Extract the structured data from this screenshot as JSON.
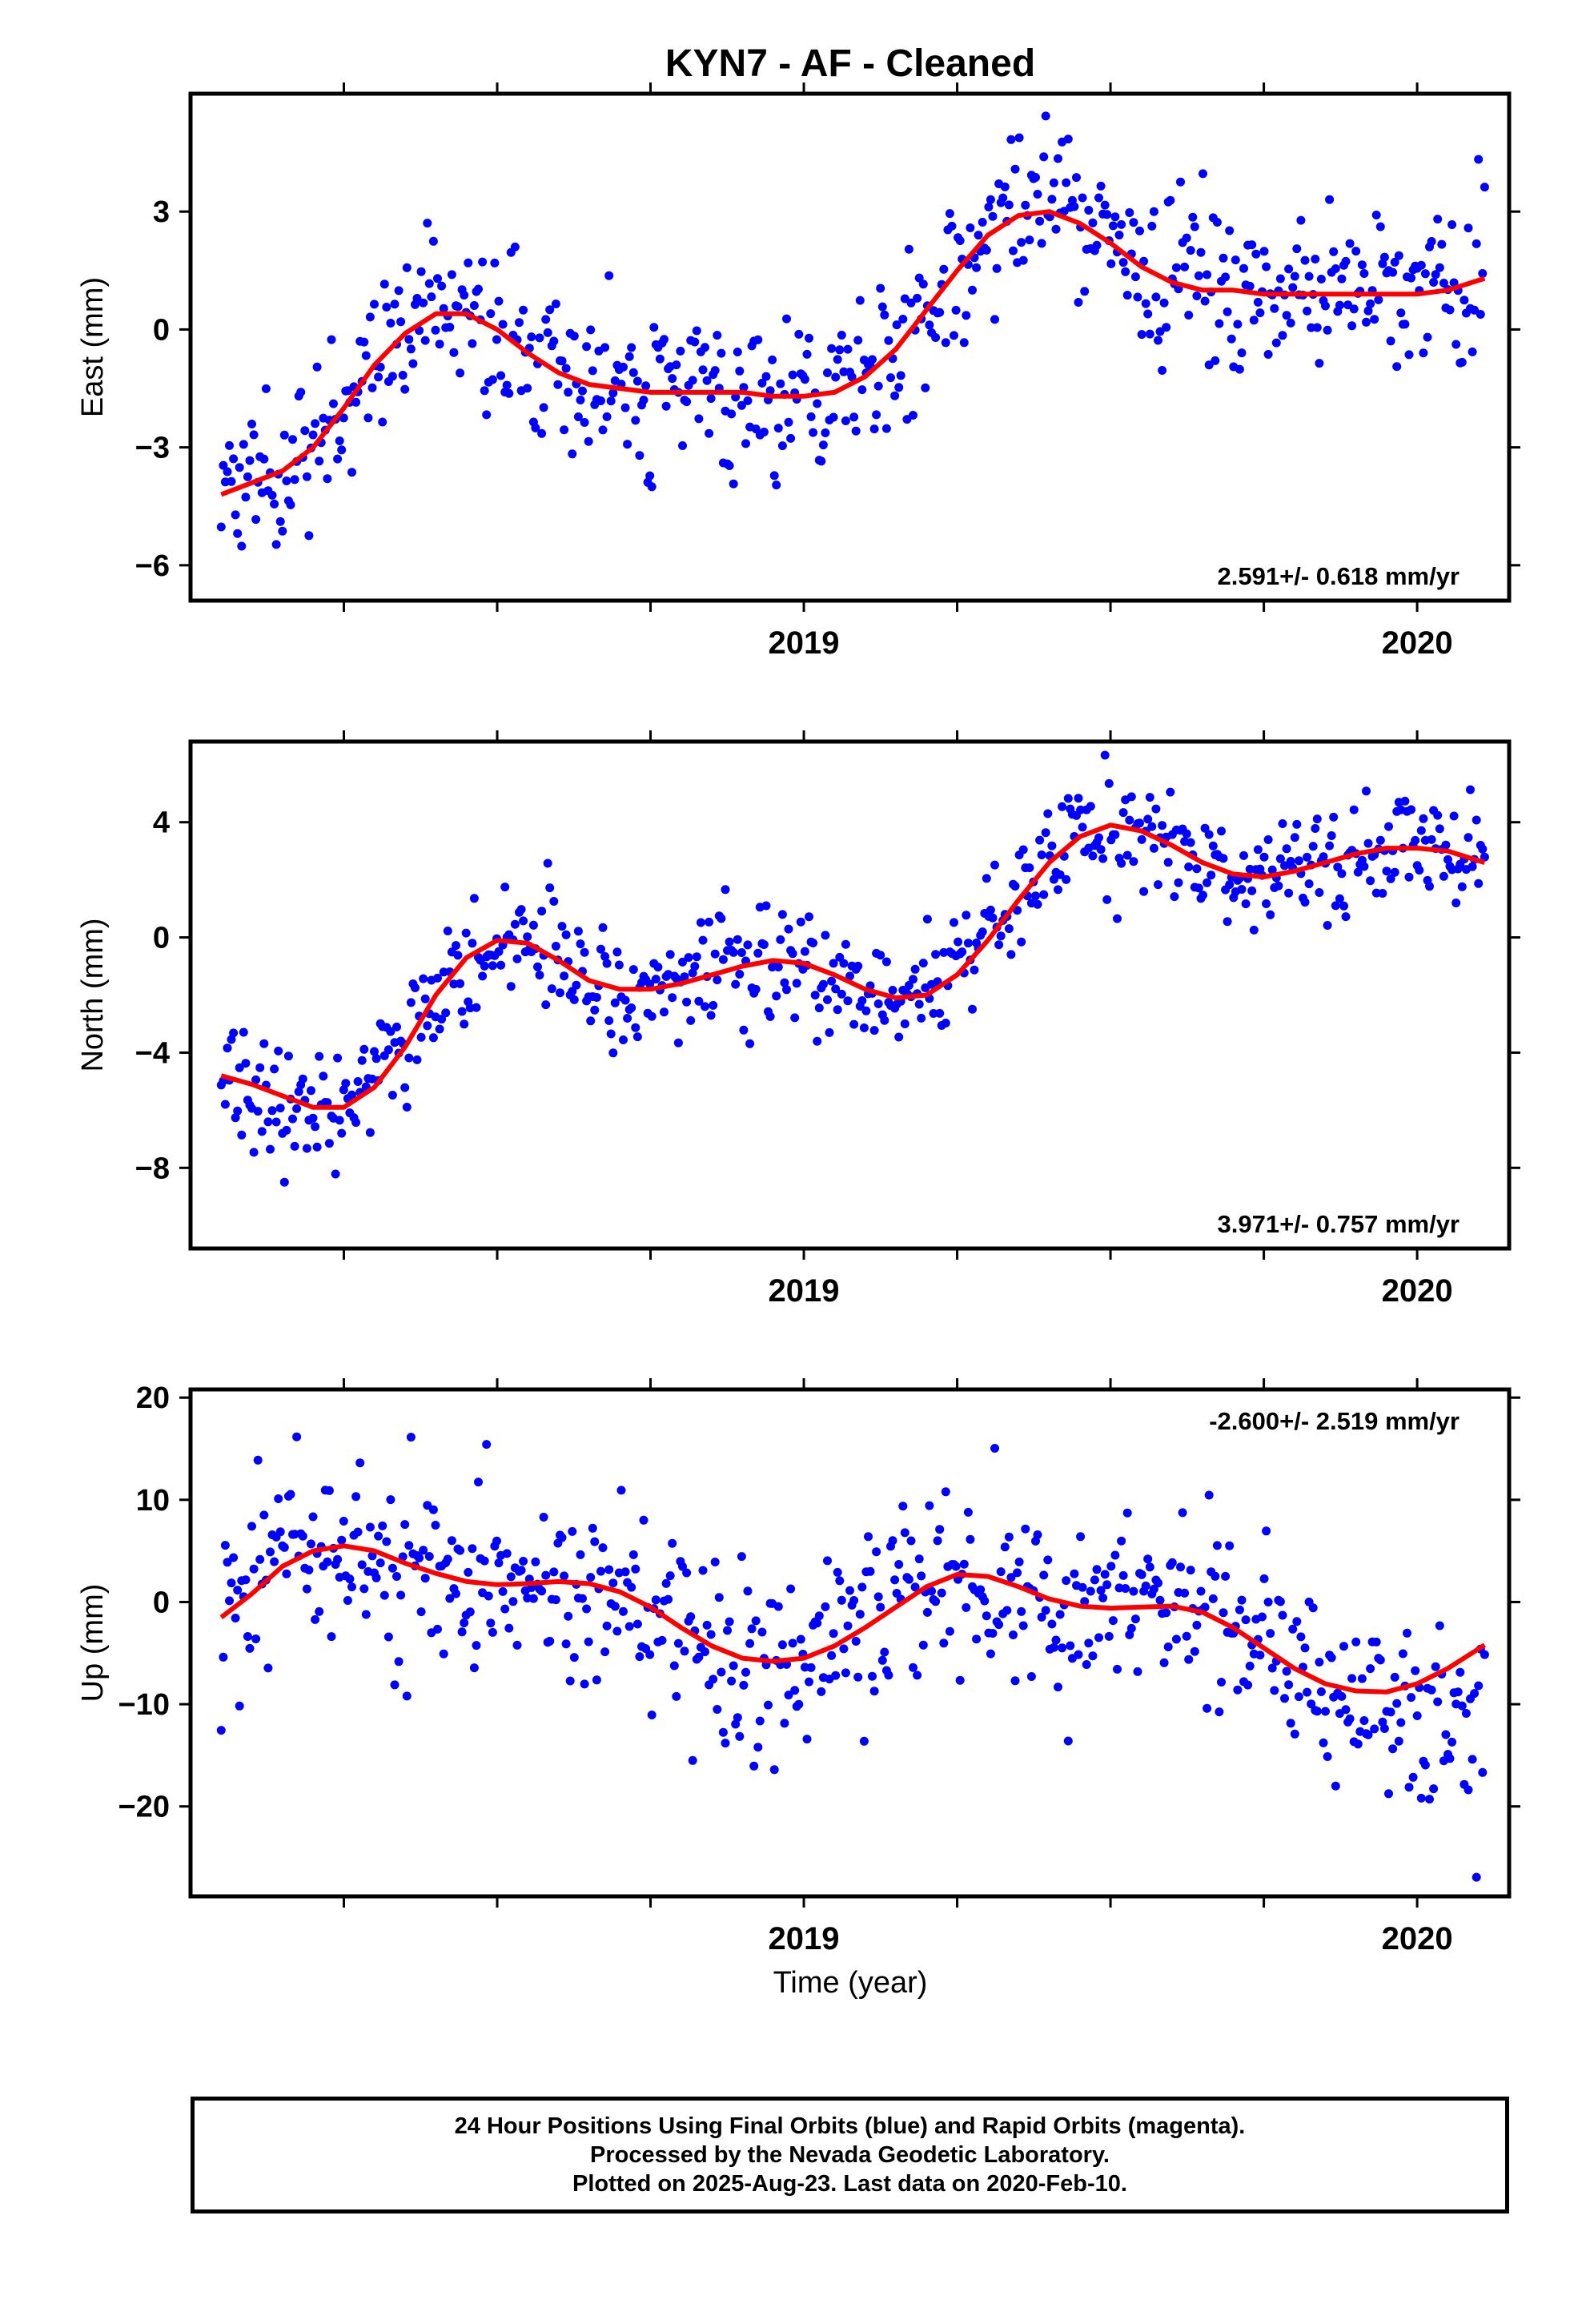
{
  "title": "KYN7  - AF - Cleaned",
  "xlabel": "Time (year)",
  "footer": {
    "line1": "24 Hour Positions Using Final Orbits (blue) and Rapid Orbits (magenta).",
    "line2": "Processed by the Nevada Geodetic Laboratory.",
    "line3": "Plotted on 2025-Aug-23. Last data on 2020-Feb-10."
  },
  "chart_data": [
    {
      "type": "scatter",
      "ylabel": "East (mm)",
      "rate_label": "2.591+/- 0.618 mm/yr",
      "rate_position": "bottom-right",
      "xlim": [
        2018.0,
        2020.15
      ],
      "ylim": [
        -6.9,
        6.0
      ],
      "xticks": [
        2019,
        2020
      ],
      "yticks": [
        -6,
        -3,
        0,
        3
      ],
      "point_color": "#0000ff",
      "fit_color": "#ff0000",
      "fit": {
        "x": [
          2018.05,
          2018.1,
          2018.15,
          2018.2,
          2018.25,
          2018.3,
          2018.35,
          2018.4,
          2018.45,
          2018.5,
          2018.55,
          2018.6,
          2018.65,
          2018.7,
          2018.75,
          2018.8,
          2018.85,
          2018.9,
          2018.95,
          2019.0,
          2019.05,
          2019.1,
          2019.15,
          2019.2,
          2019.25,
          2019.3,
          2019.35,
          2019.4,
          2019.45,
          2019.5,
          2019.55,
          2019.6,
          2019.65,
          2019.7,
          2019.75,
          2019.8,
          2019.85,
          2019.9,
          2019.95,
          2020.0,
          2020.05,
          2020.11
        ],
        "y": [
          -4.2,
          -3.9,
          -3.6,
          -3.0,
          -2.0,
          -0.9,
          -0.1,
          0.4,
          0.4,
          0.0,
          -0.6,
          -1.1,
          -1.4,
          -1.5,
          -1.6,
          -1.6,
          -1.6,
          -1.6,
          -1.7,
          -1.7,
          -1.6,
          -1.2,
          -0.5,
          0.5,
          1.5,
          2.4,
          2.9,
          3.0,
          2.7,
          2.2,
          1.6,
          1.2,
          1.0,
          1.0,
          0.9,
          0.9,
          0.9,
          0.9,
          0.9,
          0.9,
          1.0,
          1.3
        ]
      }
    },
    {
      "type": "scatter",
      "ylabel": "North (mm)",
      "rate_label": "3.971+/- 0.757 mm/yr",
      "rate_position": "bottom-right",
      "xlim": [
        2018.0,
        2020.15
      ],
      "ylim": [
        -10.8,
        6.8
      ],
      "xticks": [
        2019,
        2020
      ],
      "yticks": [
        -8,
        -4,
        0,
        4
      ],
      "point_color": "#0000ff",
      "fit_color": "#ff0000",
      "fit": {
        "x": [
          2018.05,
          2018.1,
          2018.15,
          2018.2,
          2018.25,
          2018.3,
          2018.35,
          2018.4,
          2018.45,
          2018.5,
          2018.55,
          2018.6,
          2018.65,
          2018.7,
          2018.75,
          2018.8,
          2018.85,
          2018.9,
          2018.95,
          2019.0,
          2019.05,
          2019.1,
          2019.15,
          2019.2,
          2019.25,
          2019.3,
          2019.35,
          2019.4,
          2019.45,
          2019.5,
          2019.55,
          2019.6,
          2019.65,
          2019.7,
          2019.75,
          2019.8,
          2019.85,
          2019.9,
          2019.95,
          2020.0,
          2020.05,
          2020.11
        ],
        "y": [
          -4.8,
          -5.1,
          -5.5,
          -5.9,
          -5.9,
          -5.2,
          -3.8,
          -2.0,
          -0.7,
          -0.1,
          -0.2,
          -0.8,
          -1.5,
          -1.8,
          -1.8,
          -1.6,
          -1.3,
          -1.0,
          -0.8,
          -0.9,
          -1.3,
          -1.8,
          -2.1,
          -2.0,
          -1.3,
          -0.1,
          1.3,
          2.6,
          3.5,
          3.9,
          3.7,
          3.2,
          2.6,
          2.2,
          2.1,
          2.3,
          2.6,
          2.9,
          3.1,
          3.1,
          3.0,
          2.6
        ]
      }
    },
    {
      "type": "scatter",
      "ylabel": "Up (mm)",
      "rate_label": "-2.600+/- 2.519 mm/yr",
      "rate_position": "top-right",
      "xlim": [
        2018.0,
        2020.15
      ],
      "ylim": [
        -28.8,
        20.8
      ],
      "xticks": [
        2019,
        2020
      ],
      "yticks": [
        -20,
        -10,
        0,
        10,
        20
      ],
      "point_color": "#0000ff",
      "fit_color": "#ff0000",
      "fit": {
        "x": [
          2018.05,
          2018.1,
          2018.15,
          2018.2,
          2018.25,
          2018.3,
          2018.35,
          2018.4,
          2018.45,
          2018.5,
          2018.55,
          2018.6,
          2018.65,
          2018.7,
          2018.75,
          2018.8,
          2018.85,
          2018.9,
          2018.95,
          2019.0,
          2019.05,
          2019.1,
          2019.15,
          2019.2,
          2019.25,
          2019.3,
          2019.35,
          2019.4,
          2019.45,
          2019.5,
          2019.55,
          2019.6,
          2019.65,
          2019.7,
          2019.75,
          2019.8,
          2019.85,
          2019.9,
          2019.95,
          2020.0,
          2020.05,
          2020.11
        ],
        "y": [
          -1.5,
          0.8,
          3.5,
          5.0,
          5.5,
          5.0,
          3.8,
          2.8,
          2.0,
          1.7,
          1.8,
          2.0,
          1.8,
          1.0,
          -0.5,
          -2.5,
          -4.3,
          -5.5,
          -5.8,
          -5.5,
          -4.3,
          -2.5,
          -0.5,
          1.5,
          2.7,
          2.5,
          1.5,
          0.3,
          -0.4,
          -0.6,
          -0.5,
          -0.4,
          -1.0,
          -2.5,
          -4.5,
          -6.5,
          -8.0,
          -8.7,
          -8.8,
          -8.0,
          -6.5,
          -4.2
        ]
      }
    }
  ]
}
